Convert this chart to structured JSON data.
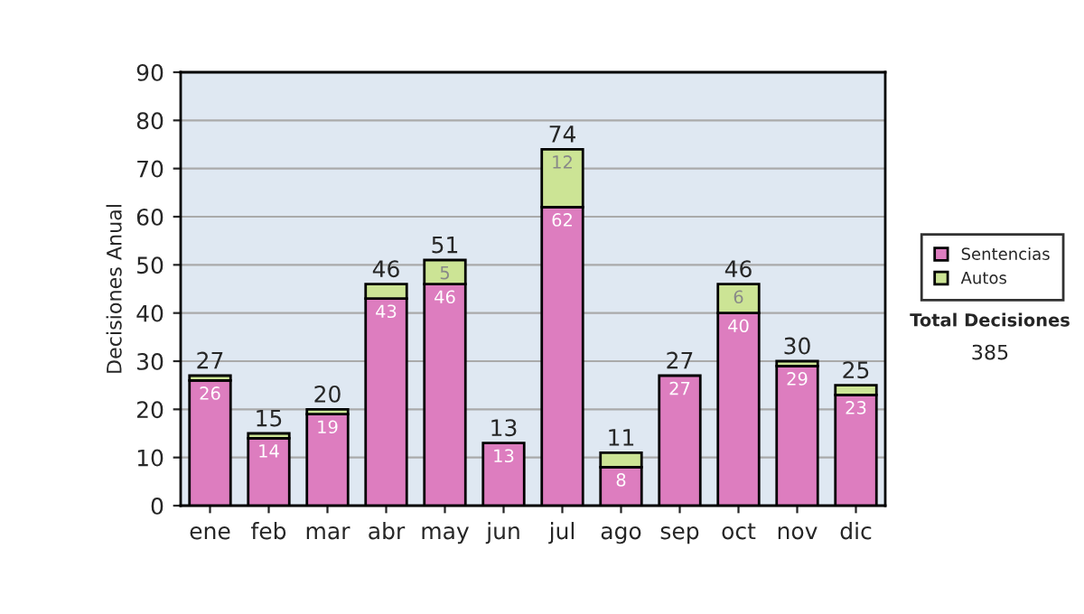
{
  "chart_data": {
    "type": "bar",
    "stacked": true,
    "ylabel": "Decisiones Anual",
    "categories": [
      "ene",
      "feb",
      "mar",
      "abr",
      "may",
      "jun",
      "jul",
      "ago",
      "sep",
      "oct",
      "nov",
      "dic"
    ],
    "series": [
      {
        "name": "Sentencias",
        "color": "#dd7dbf",
        "values": [
          26,
          14,
          19,
          43,
          46,
          13,
          62,
          8,
          27,
          40,
          29,
          23
        ],
        "value_labels": [
          "26",
          "14",
          "19",
          "43",
          "46",
          "13",
          "62",
          "8",
          "27",
          "40",
          "29",
          "23"
        ]
      },
      {
        "name": "Autos",
        "color": "#cce495",
        "values": [
          1,
          1,
          1,
          3,
          5,
          null,
          12,
          3,
          null,
          6,
          1,
          2
        ],
        "value_labels": [
          null,
          null,
          null,
          null,
          "5",
          null,
          "12",
          null,
          null,
          "6",
          null,
          null
        ]
      }
    ],
    "totals": [
      "27",
      "15",
      "20",
      "46",
      "51",
      "13",
      "74",
      "11",
      "27",
      "46",
      "30",
      "25"
    ],
    "ylim": [
      0,
      90
    ],
    "yticks": [
      0,
      10,
      20,
      30,
      40,
      50,
      60,
      70,
      80,
      90
    ],
    "grid": "y",
    "legend": "right",
    "annotations": [
      "Total Decisiones",
      "385"
    ]
  }
}
